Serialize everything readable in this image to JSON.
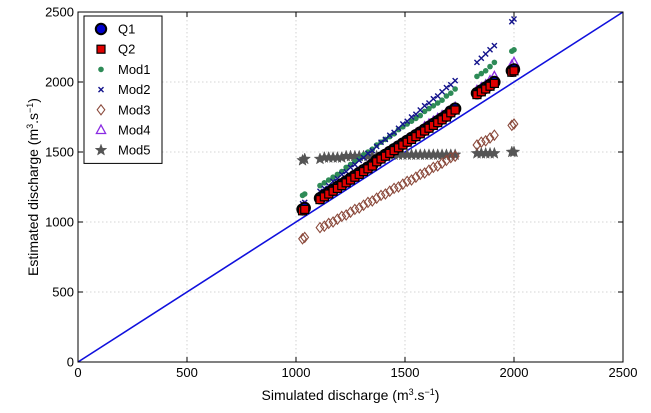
{
  "chart_data": {
    "type": "scatter",
    "title": "",
    "xlabel": {
      "prefix": "Simulated discharge (m",
      "sup1": "3",
      "mid": ".s",
      "sup2": "−1",
      "suffix": ")"
    },
    "ylabel": {
      "prefix": "Estimated discharge (m",
      "sup1": "3",
      "mid": ".s",
      "sup2": "−1",
      "suffix": ")"
    },
    "xlim": [
      0,
      2500
    ],
    "ylim": [
      0,
      2500
    ],
    "xticks": [
      "0",
      "500",
      "1000",
      "1500",
      "2000",
      "2500"
    ],
    "yticks": [
      "0",
      "500",
      "1000",
      "1500",
      "2000",
      "2500"
    ],
    "grid": true,
    "legend_position": "top-left",
    "x": [
      1030,
      1040,
      1110,
      1130,
      1150,
      1170,
      1190,
      1210,
      1230,
      1250,
      1270,
      1290,
      1310,
      1330,
      1350,
      1370,
      1390,
      1410,
      1430,
      1450,
      1470,
      1490,
      1510,
      1530,
      1550,
      1570,
      1590,
      1610,
      1630,
      1650,
      1670,
      1690,
      1710,
      1730,
      1830,
      1850,
      1870,
      1890,
      1910,
      1990,
      2000
    ],
    "reference_line": {
      "x": [
        0,
        2500
      ],
      "y": [
        0,
        2500
      ],
      "color": "#1010dd"
    },
    "series": [
      {
        "name": "Q1",
        "marker": "circle",
        "color": "#0000cc",
        "edge": "#000000",
        "y": [
          1090,
          1100,
          1170,
          1190,
          1210,
          1230,
          1250,
          1270,
          1290,
          1310,
          1330,
          1350,
          1370,
          1390,
          1410,
          1440,
          1460,
          1480,
          1500,
          1520,
          1540,
          1560,
          1580,
          1600,
          1620,
          1640,
          1660,
          1680,
          1700,
          1720,
          1740,
          1760,
          1790,
          1810,
          1920,
          1940,
          1960,
          1980,
          2000,
          2080,
          2090
        ]
      },
      {
        "name": "Q2",
        "marker": "square",
        "color": "#e00000",
        "edge": "#000000",
        "y": [
          1080,
          1090,
          1160,
          1180,
          1200,
          1220,
          1240,
          1260,
          1280,
          1300,
          1320,
          1340,
          1360,
          1380,
          1400,
          1430,
          1450,
          1470,
          1490,
          1510,
          1530,
          1550,
          1570,
          1590,
          1610,
          1630,
          1650,
          1670,
          1690,
          1710,
          1730,
          1750,
          1780,
          1800,
          1910,
          1930,
          1950,
          1970,
          1990,
          2070,
          2080
        ]
      },
      {
        "name": "Mod1",
        "marker": "dot",
        "color": "#2e8b57",
        "y": [
          1190,
          1200,
          1260,
          1280,
          1300,
          1320,
          1340,
          1360,
          1390,
          1410,
          1430,
          1450,
          1480,
          1500,
          1520,
          1550,
          1570,
          1590,
          1610,
          1630,
          1660,
          1680,
          1700,
          1720,
          1740,
          1760,
          1790,
          1810,
          1830,
          1850,
          1870,
          1900,
          1920,
          1950,
          2040,
          2060,
          2080,
          2110,
          2140,
          2220,
          2230
        ]
      },
      {
        "name": "Mod2",
        "marker": "x",
        "color": "#14148c",
        "y": [
          1130,
          1140,
          1220,
          1240,
          1260,
          1290,
          1310,
          1340,
          1360,
          1390,
          1410,
          1440,
          1460,
          1490,
          1510,
          1540,
          1570,
          1590,
          1620,
          1640,
          1670,
          1700,
          1720,
          1750,
          1770,
          1800,
          1830,
          1850,
          1880,
          1900,
          1930,
          1960,
          1980,
          2010,
          2140,
          2170,
          2200,
          2230,
          2260,
          2430,
          2450
        ]
      },
      {
        "name": "Mod3",
        "marker": "diamond",
        "color": "#8b4a3c",
        "y": [
          880,
          890,
          960,
          970,
          990,
          1000,
          1020,
          1040,
          1050,
          1070,
          1090,
          1100,
          1120,
          1140,
          1150,
          1170,
          1190,
          1200,
          1220,
          1240,
          1250,
          1270,
          1290,
          1300,
          1320,
          1340,
          1350,
          1370,
          1390,
          1400,
          1420,
          1440,
          1460,
          1470,
          1550,
          1570,
          1580,
          1600,
          1620,
          1690,
          1700
        ]
      },
      {
        "name": "Mod4",
        "marker": "triangle",
        "color": "#8a2be2",
        "y": [
          1100,
          1110,
          1180,
          1200,
          1220,
          1240,
          1260,
          1280,
          1300,
          1320,
          1340,
          1360,
          1380,
          1400,
          1420,
          1440,
          1460,
          1490,
          1510,
          1530,
          1550,
          1570,
          1590,
          1610,
          1630,
          1650,
          1680,
          1700,
          1720,
          1740,
          1760,
          1780,
          1800,
          1820,
          1940,
          1960,
          1980,
          2010,
          2040,
          2120,
          2140
        ]
      },
      {
        "name": "Mod5",
        "marker": "star",
        "color": "#555555",
        "y": [
          1440,
          1450,
          1450,
          1460,
          1460,
          1460,
          1460,
          1460,
          1470,
          1470,
          1470,
          1470,
          1470,
          1470,
          1470,
          1470,
          1470,
          1480,
          1480,
          1480,
          1480,
          1480,
          1480,
          1480,
          1480,
          1480,
          1480,
          1480,
          1480,
          1480,
          1480,
          1480,
          1480,
          1480,
          1490,
          1490,
          1490,
          1490,
          1490,
          1500,
          1500
        ]
      }
    ]
  }
}
